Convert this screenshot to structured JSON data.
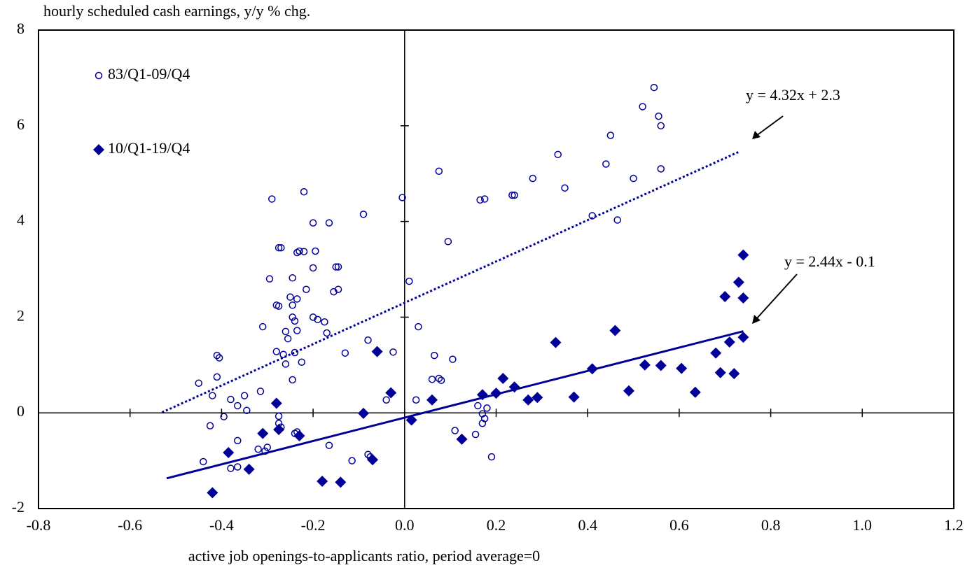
{
  "chart_data": {
    "type": "scatter",
    "y_label": "hourly scheduled cash earnings, y/y % chg.",
    "x_label": "active job openings-to-applicants ratio, period average=0",
    "xlim": [
      -0.8,
      1.2
    ],
    "xticks": [
      -0.8,
      -0.6,
      -0.4,
      -0.2,
      {
        "value": 0,
        "label": "0.0"
      },
      0.2,
      0.4,
      0.6,
      0.8,
      {
        "value": 1,
        "label": "1.0"
      },
      1.2
    ],
    "ylim": [
      -2,
      8
    ],
    "yticks": [
      -2,
      0,
      2,
      4,
      6,
      8
    ],
    "grid": false,
    "legend": "top-left",
    "series": [
      {
        "name": "83/Q1-09/Q4",
        "color": "#000099",
        "marker": "open-circle",
        "x": [
          0.545,
          0.52,
          0.555,
          0.56,
          0.45,
          0.335,
          0.44,
          0.56,
          0.5,
          0.28,
          0.35,
          0.235,
          0.24,
          0.165,
          0.175,
          0.075,
          -0.005,
          -0.09,
          0.41,
          0.465,
          0.095,
          0.01,
          0.03,
          -0.22,
          -0.29,
          -0.2,
          -0.165,
          -0.27,
          -0.275,
          -0.23,
          -0.22,
          -0.195,
          -0.235,
          -0.15,
          -0.145,
          -0.2,
          -0.245,
          -0.295,
          -0.215,
          -0.145,
          -0.155,
          -0.25,
          -0.235,
          -0.28,
          -0.275,
          -0.245,
          -0.245,
          -0.2,
          -0.19,
          -0.175,
          -0.24,
          -0.31,
          -0.235,
          -0.26,
          -0.255,
          -0.17,
          -0.08,
          -0.28,
          -0.265,
          -0.26,
          -0.24,
          -0.13,
          -0.225,
          -0.025,
          0.065,
          0.105,
          -0.41,
          -0.405,
          -0.245,
          -0.41,
          0.06,
          0.075,
          0.08,
          -0.45,
          -0.315,
          -0.38,
          -0.35,
          -0.365,
          -0.345,
          -0.42,
          -0.04,
          0.025,
          0.16,
          0.18,
          -0.395,
          0.17,
          0.175,
          -0.425,
          -0.275,
          -0.275,
          -0.27,
          -0.235,
          -0.24,
          0.17,
          0.11,
          0.155,
          -0.365,
          -0.165,
          -0.32,
          -0.3,
          -0.305,
          -0.44,
          -0.38,
          -0.365,
          -0.08,
          -0.075,
          -0.115,
          0.19
        ],
        "values": [
          6.8,
          6.4,
          6.2,
          6.0,
          5.8,
          5.4,
          5.2,
          5.1,
          4.9,
          4.9,
          4.7,
          4.55,
          4.55,
          4.45,
          4.47,
          5.05,
          4.5,
          4.15,
          4.12,
          4.03,
          3.58,
          2.75,
          1.8,
          4.62,
          4.47,
          3.97,
          3.97,
          3.45,
          3.45,
          3.38,
          3.37,
          3.38,
          3.35,
          3.05,
          3.05,
          3.03,
          2.82,
          2.8,
          2.58,
          2.58,
          2.53,
          2.42,
          2.38,
          2.25,
          2.23,
          2.25,
          2.0,
          2.0,
          1.95,
          1.9,
          1.92,
          1.8,
          1.72,
          1.7,
          1.55,
          1.67,
          1.52,
          1.28,
          1.22,
          1.02,
          1.26,
          1.25,
          1.06,
          1.27,
          1.2,
          1.12,
          1.2,
          1.15,
          0.69,
          0.75,
          0.7,
          0.72,
          0.68,
          0.62,
          0.45,
          0.28,
          0.36,
          0.15,
          0.05,
          0.36,
          0.27,
          0.27,
          0.15,
          0.1,
          -0.08,
          -0.02,
          -0.12,
          -0.27,
          -0.07,
          -0.22,
          -0.3,
          -0.4,
          -0.43,
          -0.22,
          -0.37,
          -0.45,
          -0.58,
          -0.68,
          -0.76,
          -0.72,
          -0.8,
          -1.02,
          -1.16,
          -1.13,
          -0.87,
          -0.92,
          -1.0,
          -0.92
        ],
        "trendline": {
          "slope": 4.32,
          "intercept": 2.3,
          "x": [
            -0.53,
            0.73
          ],
          "style": "dotted",
          "label": "y = 4.32x + 2.3"
        }
      },
      {
        "name": "10/Q1-19/Q4",
        "color": "#000099",
        "marker": "diamond",
        "x": [
          0.74,
          0.73,
          0.74,
          0.7,
          0.71,
          0.74,
          0.68,
          0.69,
          0.72,
          0.46,
          0.33,
          0.41,
          0.525,
          0.56,
          0.605,
          0.635,
          0.49,
          0.37,
          0.29,
          0.27,
          0.24,
          0.215,
          0.2,
          0.17,
          0.06,
          0.015,
          0.125,
          -0.06,
          -0.03,
          -0.09,
          -0.07,
          -0.14,
          -0.18,
          -0.23,
          -0.28,
          -0.275,
          -0.31,
          -0.34,
          -0.385,
          -0.42
        ],
        "values": [
          3.3,
          2.73,
          2.4,
          2.43,
          1.48,
          1.58,
          1.25,
          0.84,
          0.82,
          1.72,
          1.47,
          0.92,
          1.0,
          0.99,
          0.93,
          0.43,
          0.46,
          0.33,
          0.32,
          0.27,
          0.54,
          0.72,
          0.41,
          0.38,
          0.27,
          -0.15,
          -0.55,
          1.28,
          0.42,
          -0.01,
          -0.98,
          -1.45,
          -1.43,
          -0.48,
          0.2,
          -0.35,
          -0.43,
          -1.18,
          -0.83,
          -1.67
        ],
        "trendline": {
          "slope": 2.44,
          "intercept": -0.1,
          "x": [
            -0.52,
            0.74
          ],
          "style": "solid",
          "label": "y = 2.44x - 0.1"
        }
      }
    ]
  }
}
